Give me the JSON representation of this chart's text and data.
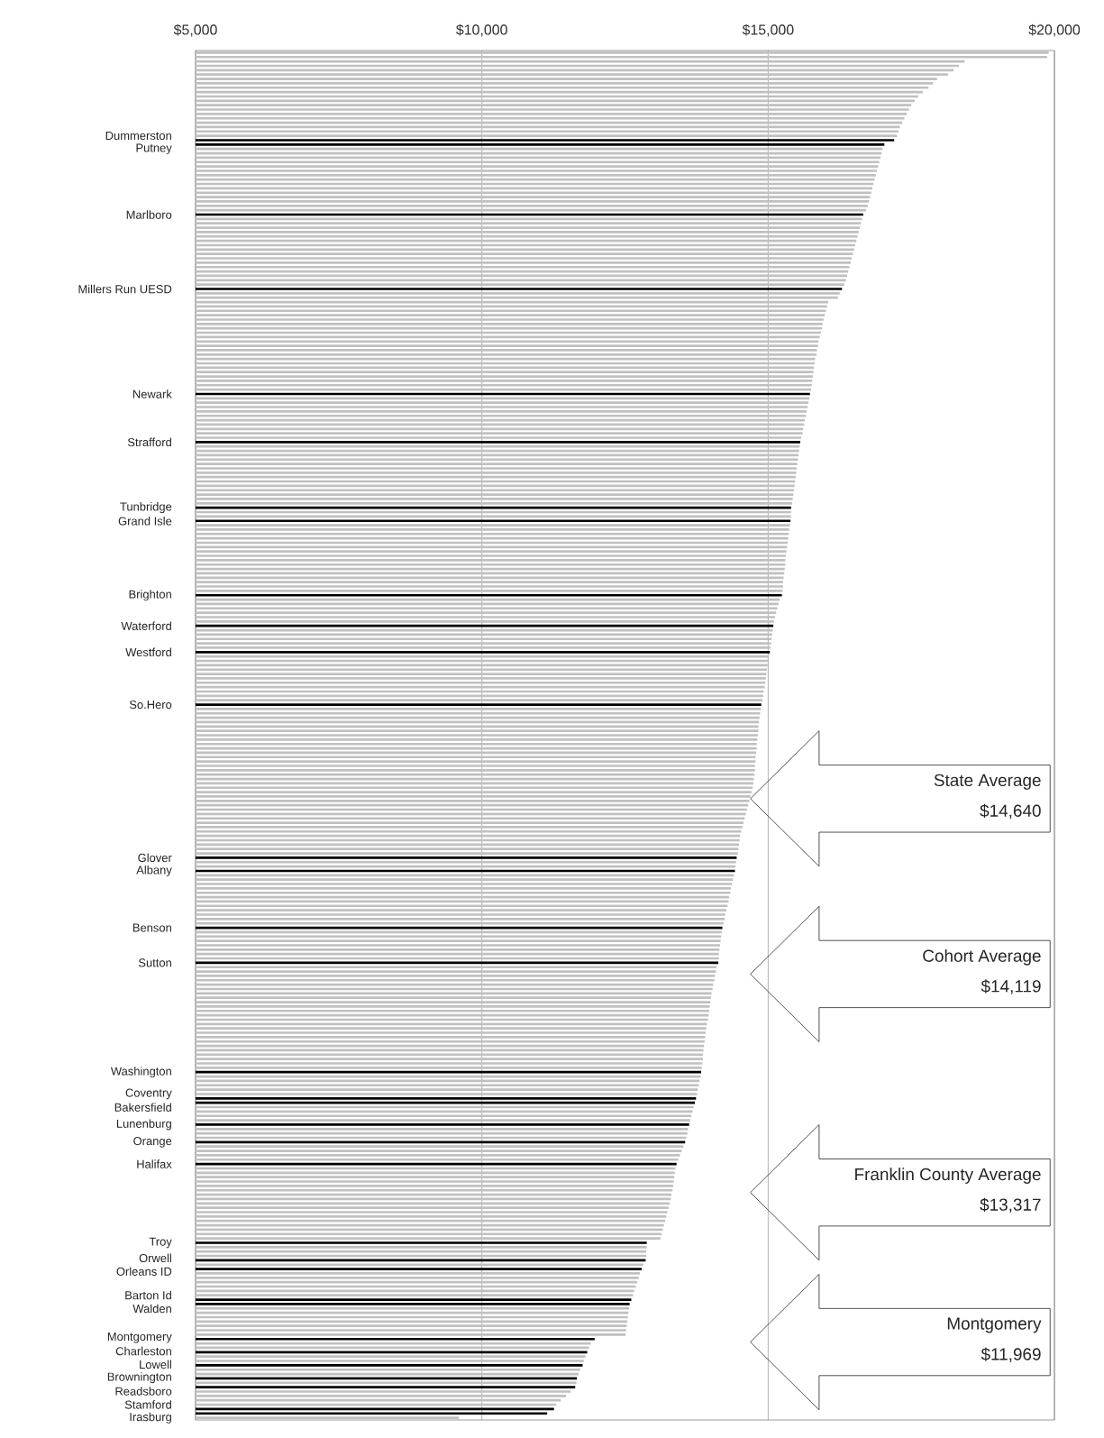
{
  "chart_data": {
    "type": "bar",
    "orientation": "horizontal",
    "categories": [
      null,
      null,
      null,
      null,
      null,
      null,
      null,
      null,
      null,
      null,
      null,
      null,
      null,
      null,
      null,
      null,
      null,
      null,
      null,
      null,
      "Dummerston",
      "Putney",
      null,
      null,
      null,
      null,
      null,
      null,
      null,
      null,
      null,
      null,
      null,
      null,
      null,
      null,
      null,
      "Marlboro",
      null,
      null,
      null,
      null,
      null,
      null,
      null,
      null,
      null,
      null,
      null,
      null,
      null,
      null,
      null,
      null,
      "Millers Run UESD",
      null,
      null,
      null,
      null,
      null,
      null,
      null,
      null,
      null,
      null,
      null,
      null,
      null,
      null,
      null,
      null,
      null,
      null,
      null,
      null,
      null,
      null,
      null,
      "Newark",
      null,
      null,
      null,
      null,
      null,
      null,
      null,
      null,
      null,
      null,
      "Strafford",
      null,
      null,
      null,
      null,
      null,
      null,
      null,
      null,
      null,
      null,
      null,
      null,
      null,
      null,
      "Tunbridge",
      null,
      null,
      "Grand Isle",
      null,
      null,
      null,
      null,
      null,
      null,
      null,
      null,
      null,
      null,
      null,
      null,
      null,
      null,
      null,
      null,
      "Brighton",
      null,
      null,
      null,
      null,
      null,
      null,
      "Waterford",
      null,
      null,
      null,
      null,
      null,
      "Westford",
      null,
      null,
      null,
      null,
      null,
      null,
      null,
      null,
      null,
      null,
      null,
      "So.Hero",
      null,
      null,
      null,
      null,
      null,
      null,
      null,
      null,
      null,
      null,
      null,
      null,
      null,
      null,
      null,
      null,
      null,
      null,
      null,
      null,
      null,
      null,
      null,
      null,
      null,
      null,
      null,
      null,
      null,
      null,
      null,
      null,
      null,
      null,
      "Glover",
      null,
      null,
      "Albany",
      null,
      null,
      null,
      null,
      null,
      null,
      null,
      null,
      null,
      null,
      null,
      null,
      "Benson",
      null,
      null,
      null,
      null,
      null,
      null,
      null,
      "Sutton",
      null,
      null,
      null,
      null,
      null,
      null,
      null,
      null,
      null,
      null,
      null,
      null,
      null,
      null,
      null,
      null,
      null,
      null,
      null,
      null,
      null,
      null,
      null,
      null,
      "Washington",
      null,
      null,
      null,
      null,
      null,
      "Coventry",
      "Bakersfield",
      null,
      null,
      null,
      null,
      "Lunenburg",
      null,
      null,
      null,
      "Orange",
      null,
      null,
      null,
      null,
      "Halifax",
      null,
      null,
      null,
      null,
      null,
      null,
      null,
      null,
      null,
      null,
      null,
      null,
      null,
      null,
      null,
      null,
      null,
      "Troy",
      null,
      null,
      null,
      "Orwell",
      null,
      "Orleans ID",
      null,
      null,
      null,
      null,
      null,
      null,
      "Barton Id",
      "Walden",
      null,
      null,
      null,
      null,
      null,
      null,
      null,
      "Montgomery",
      null,
      null,
      "Charleston",
      null,
      null,
      "Lowell",
      null,
      null,
      "Brownington",
      null,
      "Readsboro",
      null,
      null,
      null,
      null,
      "Stamford",
      "Irasburg",
      null
    ],
    "values": [
      19900,
      19870,
      18430,
      18330,
      18240,
      18140,
      17950,
      17880,
      17800,
      17700,
      17620,
      17560,
      17500,
      17460,
      17420,
      17380,
      17340,
      17300,
      17280,
      17250,
      17200,
      17030,
      17000,
      16980,
      16960,
      16940,
      16920,
      16900,
      16880,
      16860,
      16840,
      16820,
      16800,
      16780,
      16760,
      16740,
      16710,
      16660,
      16640,
      16620,
      16600,
      16580,
      16560,
      16540,
      16520,
      16500,
      16480,
      16460,
      16440,
      16420,
      16400,
      16380,
      16360,
      16330,
      16290,
      16250,
      16220,
      16050,
      16030,
      16010,
      15990,
      15970,
      15950,
      15940,
      15920,
      15900,
      15880,
      15870,
      15850,
      15840,
      15820,
      15810,
      15800,
      15790,
      15780,
      15770,
      15760,
      15750,
      15730,
      15720,
      15700,
      15690,
      15670,
      15660,
      15640,
      15630,
      15610,
      15600,
      15580,
      15560,
      15550,
      15540,
      15530,
      15520,
      15510,
      15500,
      15490,
      15480,
      15470,
      15460,
      15450,
      15440,
      15430,
      15420,
      15400,
      15400,
      15400,
      15390,
      15380,
      15370,
      15360,
      15350,
      15340,
      15330,
      15320,
      15310,
      15300,
      15300,
      15290,
      15280,
      15270,
      15260,
      15260,
      15250,
      15240,
      15200,
      15180,
      15160,
      15140,
      15120,
      15100,
      15090,
      15080,
      15070,
      15060,
      15050,
      15040,
      15030,
      15010,
      15000,
      14990,
      14980,
      14970,
      14960,
      14950,
      14940,
      14920,
      14910,
      14900,
      14880,
      14870,
      14860,
      14850,
      14840,
      14830,
      14830,
      14820,
      14810,
      14800,
      14800,
      14790,
      14780,
      14780,
      14770,
      14770,
      14760,
      14750,
      14740,
      14730,
      14710,
      14690,
      14670,
      14650,
      14630,
      14610,
      14590,
      14570,
      14550,
      14530,
      14510,
      14500,
      14490,
      14480,
      14470,
      14450,
      14440,
      14430,
      14420,
      14400,
      14380,
      14370,
      14350,
      14340,
      14320,
      14310,
      14290,
      14270,
      14250,
      14240,
      14220,
      14200,
      14190,
      14180,
      14170,
      14160,
      14150,
      14140,
      14140,
      14130,
      14100,
      14090,
      14070,
      14060,
      14040,
      14030,
      14010,
      14000,
      13990,
      13980,
      13970,
      13960,
      13950,
      13930,
      13920,
      13910,
      13900,
      13890,
      13880,
      13870,
      13860,
      13860,
      13850,
      13840,
      13830,
      13820,
      13800,
      13790,
      13770,
      13760,
      13740,
      13720,
      13700,
      13680,
      13660,
      13640,
      13620,
      13600,
      13590,
      13570,
      13550,
      13520,
      13490,
      13460,
      13430,
      13400,
      13380,
      13370,
      13360,
      13350,
      13340,
      13330,
      13310,
      13300,
      13280,
      13260,
      13240,
      13220,
      13200,
      13180,
      13160,
      13140,
      13120,
      12880,
      12880,
      12870,
      12870,
      12860,
      12820,
      12790,
      12760,
      12740,
      12710,
      12690,
      12660,
      12640,
      12610,
      12580,
      12570,
      12560,
      12550,
      12540,
      12530,
      12520,
      12510,
      11970,
      11900,
      11870,
      11840,
      11810,
      11780,
      11760,
      11720,
      11690,
      11660,
      11650,
      11630,
      11550,
      11470,
      11380,
      11300,
      11260,
      11140,
      9600
    ],
    "colors": [
      "#c0c0c0",
      "#c0c0c0",
      "#c0c0c0",
      "#c0c0c0",
      "#c0c0c0",
      "#c0c0c0",
      "#c0c0c0",
      "#c0c0c0",
      "#c0c0c0",
      "#c0c0c0",
      "#c0c0c0",
      "#c0c0c0",
      "#c0c0c0",
      "#c0c0c0",
      "#c0c0c0",
      "#c0c0c0",
      "#c0c0c0",
      "#c0c0c0",
      "#c0c0c0",
      "#c0c0c0",
      "#000000",
      "#000000",
      "#c0c0c0",
      "#c0c0c0",
      "#c0c0c0",
      "#c0c0c0",
      "#c0c0c0",
      "#c0c0c0",
      "#c0c0c0",
      "#c0c0c0",
      "#c0c0c0",
      "#c0c0c0",
      "#c0c0c0",
      "#c0c0c0",
      "#c0c0c0",
      "#c0c0c0",
      "#c0c0c0",
      "#000000",
      "#c0c0c0",
      "#c0c0c0",
      "#c0c0c0",
      "#c0c0c0",
      "#c0c0c0",
      "#c0c0c0",
      "#c0c0c0",
      "#c0c0c0",
      "#c0c0c0",
      "#c0c0c0",
      "#c0c0c0",
      "#c0c0c0",
      "#c0c0c0",
      "#c0c0c0",
      "#c0c0c0",
      "#c0c0c0",
      "#000000",
      "#c0c0c0",
      "#c0c0c0",
      "#c0c0c0",
      "#c0c0c0",
      "#c0c0c0",
      "#c0c0c0",
      "#c0c0c0",
      "#c0c0c0",
      "#c0c0c0",
      "#c0c0c0",
      "#c0c0c0",
      "#c0c0c0",
      "#c0c0c0",
      "#c0c0c0",
      "#c0c0c0",
      "#c0c0c0",
      "#c0c0c0",
      "#c0c0c0",
      "#c0c0c0",
      "#c0c0c0",
      "#c0c0c0",
      "#c0c0c0",
      "#c0c0c0",
      "#000000",
      "#c0c0c0",
      "#c0c0c0",
      "#c0c0c0",
      "#c0c0c0",
      "#c0c0c0",
      "#c0c0c0",
      "#c0c0c0",
      "#c0c0c0",
      "#c0c0c0",
      "#c0c0c0",
      "#000000",
      "#c0c0c0",
      "#c0c0c0",
      "#c0c0c0",
      "#c0c0c0",
      "#c0c0c0",
      "#c0c0c0",
      "#c0c0c0",
      "#c0c0c0",
      "#c0c0c0",
      "#c0c0c0",
      "#c0c0c0",
      "#c0c0c0",
      "#c0c0c0",
      "#c0c0c0",
      "#000000",
      "#c0c0c0",
      "#c0c0c0",
      "#000000",
      "#c0c0c0",
      "#c0c0c0",
      "#c0c0c0",
      "#c0c0c0",
      "#c0c0c0",
      "#c0c0c0",
      "#c0c0c0",
      "#c0c0c0",
      "#c0c0c0",
      "#c0c0c0",
      "#c0c0c0",
      "#c0c0c0",
      "#c0c0c0",
      "#c0c0c0",
      "#c0c0c0",
      "#c0c0c0",
      "#000000",
      "#c0c0c0",
      "#c0c0c0",
      "#c0c0c0",
      "#c0c0c0",
      "#c0c0c0",
      "#c0c0c0",
      "#000000",
      "#c0c0c0",
      "#c0c0c0",
      "#c0c0c0",
      "#c0c0c0",
      "#c0c0c0",
      "#000000",
      "#c0c0c0",
      "#c0c0c0",
      "#c0c0c0",
      "#c0c0c0",
      "#c0c0c0",
      "#c0c0c0",
      "#c0c0c0",
      "#c0c0c0",
      "#c0c0c0",
      "#c0c0c0",
      "#c0c0c0",
      "#000000",
      "#c0c0c0",
      "#c0c0c0",
      "#c0c0c0",
      "#c0c0c0",
      "#c0c0c0",
      "#c0c0c0",
      "#c0c0c0",
      "#c0c0c0",
      "#c0c0c0",
      "#c0c0c0",
      "#c0c0c0",
      "#c0c0c0",
      "#c0c0c0",
      "#c0c0c0",
      "#c0c0c0",
      "#c0c0c0",
      "#c0c0c0",
      "#c0c0c0",
      "#c0c0c0",
      "#c0c0c0",
      "#c0c0c0",
      "#c0c0c0",
      "#c0c0c0",
      "#c0c0c0",
      "#c0c0c0",
      "#c0c0c0",
      "#c0c0c0",
      "#c0c0c0",
      "#c0c0c0",
      "#c0c0c0",
      "#c0c0c0",
      "#c0c0c0",
      "#c0c0c0",
      "#c0c0c0",
      "#000000",
      "#c0c0c0",
      "#c0c0c0",
      "#000000",
      "#c0c0c0",
      "#c0c0c0",
      "#c0c0c0",
      "#c0c0c0",
      "#c0c0c0",
      "#c0c0c0",
      "#c0c0c0",
      "#c0c0c0",
      "#c0c0c0",
      "#c0c0c0",
      "#c0c0c0",
      "#c0c0c0",
      "#000000",
      "#c0c0c0",
      "#c0c0c0",
      "#c0c0c0",
      "#c0c0c0",
      "#c0c0c0",
      "#c0c0c0",
      "#c0c0c0",
      "#000000",
      "#c0c0c0",
      "#c0c0c0",
      "#c0c0c0",
      "#c0c0c0",
      "#c0c0c0",
      "#c0c0c0",
      "#c0c0c0",
      "#c0c0c0",
      "#c0c0c0",
      "#c0c0c0",
      "#c0c0c0",
      "#c0c0c0",
      "#c0c0c0",
      "#c0c0c0",
      "#c0c0c0",
      "#c0c0c0",
      "#c0c0c0",
      "#c0c0c0",
      "#c0c0c0",
      "#c0c0c0",
      "#c0c0c0",
      "#c0c0c0",
      "#c0c0c0",
      "#c0c0c0",
      "#000000",
      "#c0c0c0",
      "#c0c0c0",
      "#c0c0c0",
      "#c0c0c0",
      "#c0c0c0",
      "#000000",
      "#000000",
      "#c0c0c0",
      "#c0c0c0",
      "#c0c0c0",
      "#c0c0c0",
      "#000000",
      "#c0c0c0",
      "#c0c0c0",
      "#c0c0c0",
      "#000000",
      "#c0c0c0",
      "#c0c0c0",
      "#c0c0c0",
      "#c0c0c0",
      "#000000",
      "#c0c0c0",
      "#c0c0c0",
      "#c0c0c0",
      "#c0c0c0",
      "#c0c0c0",
      "#c0c0c0",
      "#c0c0c0",
      "#c0c0c0",
      "#c0c0c0",
      "#c0c0c0",
      "#c0c0c0",
      "#c0c0c0",
      "#c0c0c0",
      "#c0c0c0",
      "#c0c0c0",
      "#c0c0c0",
      "#c0c0c0",
      "#000000",
      "#c0c0c0",
      "#c0c0c0",
      "#c0c0c0",
      "#000000",
      "#c0c0c0",
      "#000000",
      "#c0c0c0",
      "#c0c0c0",
      "#c0c0c0",
      "#c0c0c0",
      "#c0c0c0",
      "#c0c0c0",
      "#000000",
      "#000000",
      "#c0c0c0",
      "#c0c0c0",
      "#c0c0c0",
      "#c0c0c0",
      "#c0c0c0",
      "#c0c0c0",
      "#c0c0c0",
      "#000000",
      "#c0c0c0",
      "#c0c0c0",
      "#000000",
      "#c0c0c0",
      "#c0c0c0",
      "#000000",
      "#c0c0c0",
      "#c0c0c0",
      "#000000",
      "#c0c0c0",
      "#000000",
      "#c0c0c0",
      "#c0c0c0",
      "#c0c0c0",
      "#c0c0c0",
      "#000000",
      "#000000",
      "#c0c0c0"
    ],
    "xlim": [
      5000,
      20000
    ],
    "xticks": [
      {
        "value": 5000,
        "label": "$5,000"
      },
      {
        "value": 10000,
        "label": "$10,000"
      },
      {
        "value": 15000,
        "label": "$15,000"
      },
      {
        "value": 20000,
        "label": "$20,000"
      }
    ],
    "grid": "x",
    "annotations": [
      "State Average",
      "$14,640",
      "Cohort Average",
      "$14,119",
      "Franklin County Average",
      "$13,317",
      "Montgomery",
      "$11,969"
    ]
  }
}
